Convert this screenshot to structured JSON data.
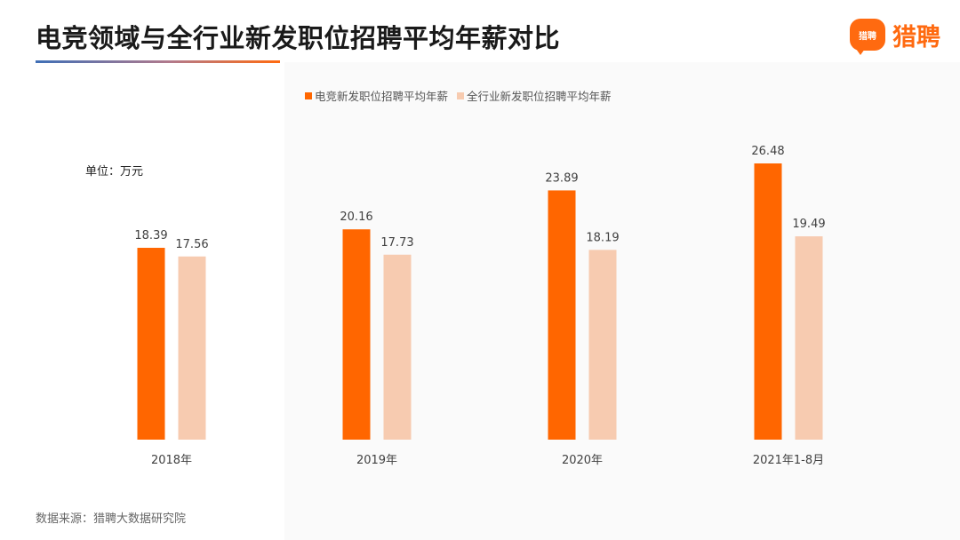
{
  "header": {
    "title": "电竞领域与全行业新发职位招聘平均年薪对比",
    "logo_badge": "猎聘",
    "logo_text": "猎聘",
    "logo_icon": "speech-bubble-icon"
  },
  "unit_label": "单位：万元",
  "source": "数据来源：猎聘大数据研究院",
  "colors": {
    "esports": "#ff6600",
    "all_industry": "#f7cbb0",
    "accent": "#ff6a10"
  },
  "chart_data": {
    "type": "bar",
    "title": "电竞领域与全行业新发职位招聘平均年薪对比",
    "xlabel": "",
    "ylabel": "",
    "unit": "万元",
    "categories": [
      "2018年",
      "2019年",
      "2020年",
      "2021年1-8月"
    ],
    "series": [
      {
        "name": "电竞新发职位招聘平均年薪",
        "values": [
          18.39,
          20.16,
          23.89,
          26.48
        ],
        "value_labels": [
          "18.39",
          "20.16",
          "23.89",
          "26.48"
        ]
      },
      {
        "name": "全行业新发职位招聘平均年薪",
        "values": [
          17.56,
          17.73,
          18.19,
          19.49
        ],
        "value_labels": [
          "17.56",
          "17.73",
          "18.19",
          "19.49"
        ]
      }
    ],
    "ylim": [
      0,
      26.48
    ],
    "grid": false,
    "legend_position": "top-center"
  }
}
